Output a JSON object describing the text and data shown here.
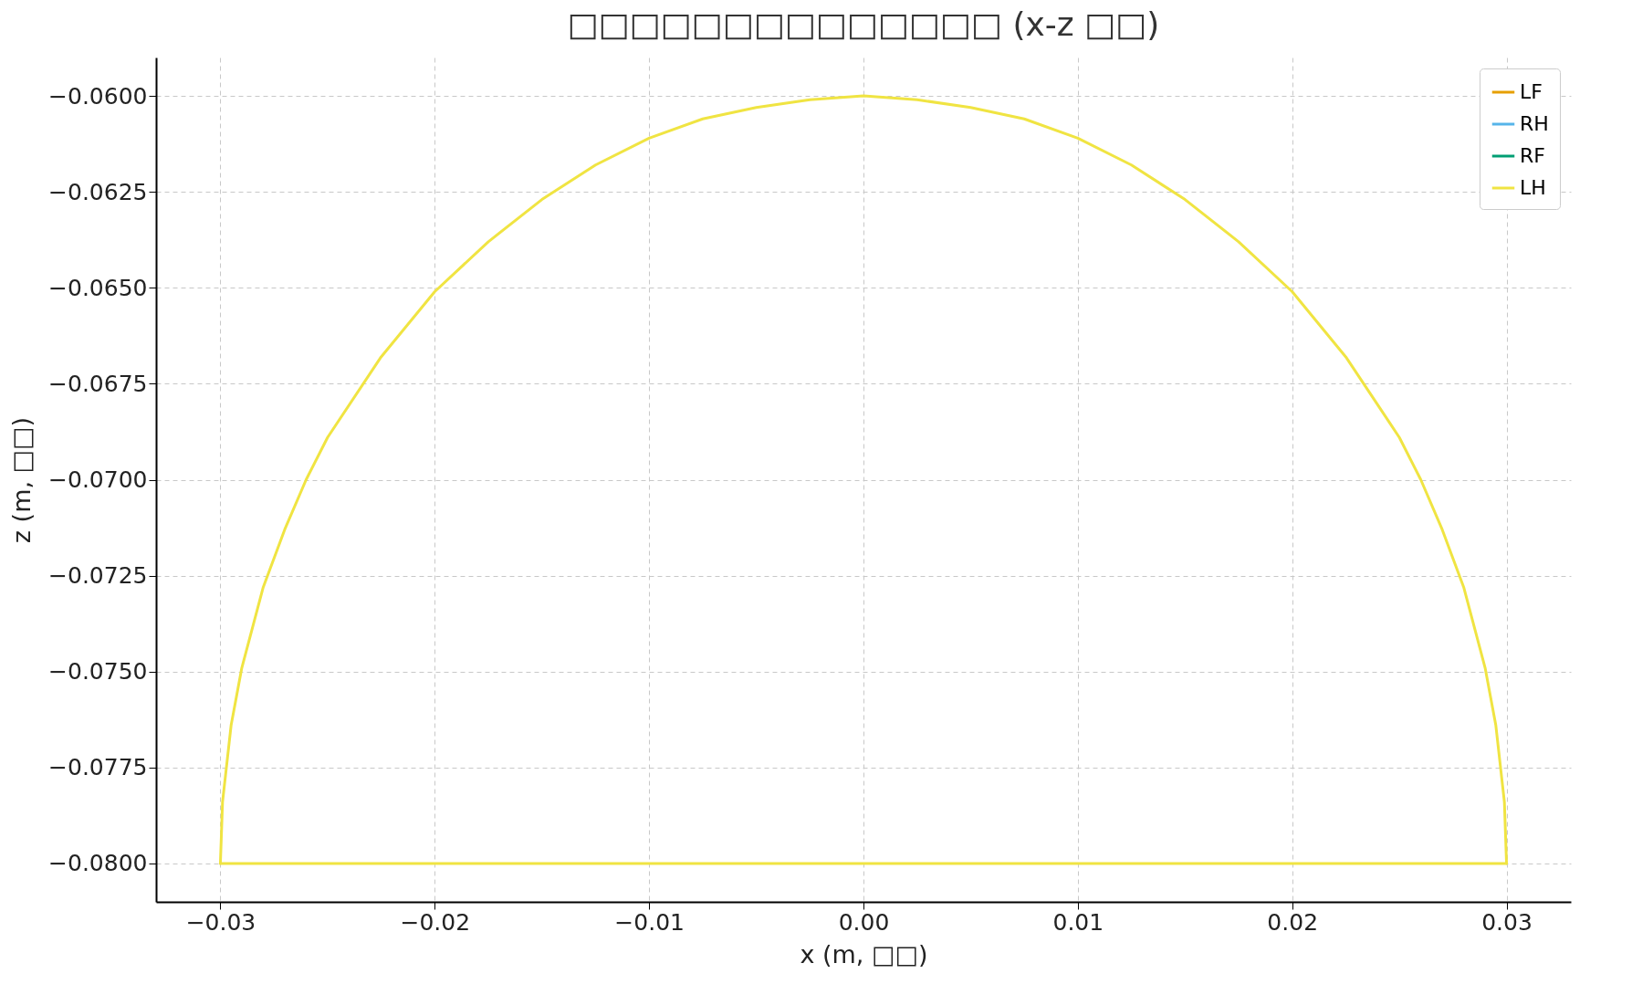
{
  "chart_data": {
    "type": "line",
    "title": "□□□□□□□□□□□□□□ (x-z □□)",
    "xlabel": "x (m, □□)",
    "ylabel": "z (m, □□)",
    "x": [
      -0.03,
      -0.0299,
      -0.0295,
      -0.029,
      -0.028,
      -0.027,
      -0.026,
      -0.025,
      -0.0225,
      -0.02,
      -0.0175,
      -0.015,
      -0.0125,
      -0.01,
      -0.0075,
      -0.005,
      -0.0025,
      0,
      0.0025,
      0.005,
      0.0075,
      0.01,
      0.0125,
      0.015,
      0.0175,
      0.02,
      0.0225,
      0.025,
      0.026,
      0.027,
      0.028,
      0.029,
      0.0295,
      0.0299,
      0.03
    ],
    "series": [
      {
        "name": "LF",
        "color": "#e69f00",
        "values": [
          null,
          null,
          null,
          null,
          null,
          null,
          null,
          null,
          null,
          null,
          null,
          null,
          null,
          null,
          null,
          null,
          null,
          null,
          null,
          null,
          null,
          null,
          null,
          null,
          null,
          null,
          null,
          null,
          null,
          null,
          null,
          null,
          null,
          null,
          null
        ]
      },
      {
        "name": "RH",
        "color": "#56b4e9",
        "values": [
          null,
          null,
          null,
          null,
          null,
          null,
          null,
          null,
          null,
          null,
          null,
          null,
          null,
          null,
          null,
          null,
          null,
          null,
          null,
          null,
          null,
          null,
          null,
          null,
          null,
          null,
          null,
          null,
          null,
          null,
          null,
          null,
          null,
          null,
          null
        ]
      },
      {
        "name": "RF",
        "color": "#009e73",
        "values": [
          null,
          null,
          null,
          null,
          null,
          null,
          null,
          null,
          null,
          null,
          null,
          null,
          null,
          null,
          null,
          null,
          null,
          null,
          null,
          null,
          null,
          null,
          null,
          null,
          null,
          null,
          null,
          null,
          null,
          null,
          null,
          null,
          null,
          null,
          null
        ]
      },
      {
        "name": "LH",
        "color": "#f0e442",
        "values": [
          -0.08,
          -0.0784,
          -0.0764,
          -0.0749,
          -0.0728,
          -0.0713,
          -0.07,
          -0.0689,
          -0.0668,
          -0.0651,
          -0.0638,
          -0.0627,
          -0.0618,
          -0.0611,
          -0.0606,
          -0.0603,
          -0.0601,
          -0.06,
          -0.0601,
          -0.0603,
          -0.0606,
          -0.0611,
          -0.0618,
          -0.0627,
          -0.0638,
          -0.0651,
          -0.0668,
          -0.0689,
          -0.07,
          -0.0713,
          -0.0728,
          -0.0749,
          -0.0764,
          -0.0784,
          -0.08
        ]
      },
      {
        "type": "line",
        "color": "#f0e442",
        "x": [
          -0.03,
          0.03
        ],
        "values": [
          -0.08,
          -0.08
        ]
      }
    ],
    "xlim": [
      -0.033,
      0.033
    ],
    "ylim": [
      -0.081,
      -0.059
    ],
    "xticks": [
      {
        "value": -0.03,
        "label": "−0.03"
      },
      {
        "value": -0.02,
        "label": "−0.02"
      },
      {
        "value": -0.01,
        "label": "−0.01"
      },
      {
        "value": 0,
        "label": "0.00"
      },
      {
        "value": 0.01,
        "label": "0.01"
      },
      {
        "value": 0.02,
        "label": "0.02"
      },
      {
        "value": 0.03,
        "label": "0.03"
      }
    ],
    "yticks": [
      {
        "value": -0.08,
        "label": "−0.0800"
      },
      {
        "value": -0.0775,
        "label": "−0.0775"
      },
      {
        "value": -0.075,
        "label": "−0.0750"
      },
      {
        "value": -0.0725,
        "label": "−0.0725"
      },
      {
        "value": -0.07,
        "label": "−0.0700"
      },
      {
        "value": -0.0675,
        "label": "−0.0675"
      },
      {
        "value": -0.065,
        "label": "−0.0650"
      },
      {
        "value": -0.0625,
        "label": "−0.0625"
      },
      {
        "value": -0.06,
        "label": "−0.0600"
      }
    ],
    "grid": true,
    "legend": "top right",
    "line_style": "solid"
  }
}
